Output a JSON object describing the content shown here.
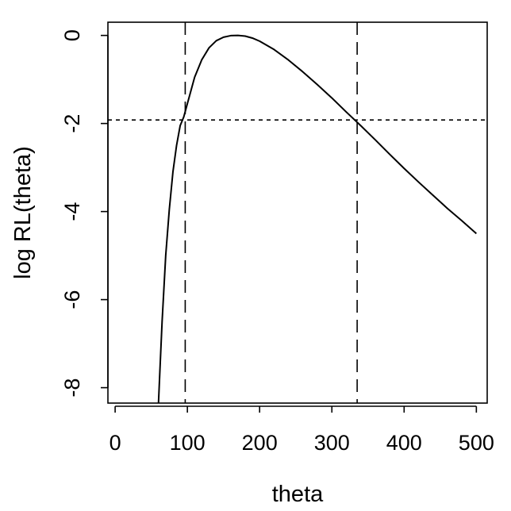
{
  "chart_data": {
    "type": "line",
    "title": "",
    "xlabel": "theta",
    "ylabel": "log RL(theta)",
    "xlim": [
      -10,
      515
    ],
    "ylim": [
      -8.35,
      0.3
    ],
    "x_ticks": [
      0,
      100,
      200,
      300,
      400,
      500
    ],
    "x_tick_labels": [
      "0",
      "100",
      "200",
      "300",
      "400",
      "500"
    ],
    "y_ticks": [
      0,
      -2,
      -4,
      -6,
      -8
    ],
    "y_tick_labels": [
      "0",
      "-2",
      "-4",
      "-6",
      "-8"
    ],
    "grid": false,
    "series": [
      {
        "style": "solid",
        "x": [
          60,
          62,
          65,
          70,
          75,
          80,
          85,
          90,
          95,
          100,
          110,
          120,
          130,
          140,
          150,
          160,
          170,
          180,
          190,
          200,
          220,
          240,
          260,
          280,
          300,
          320,
          340,
          360,
          380,
          400,
          420,
          440,
          460,
          480,
          500
        ],
        "y": [
          -8.35,
          -7.6,
          -6.5,
          -5.0,
          -3.95,
          -3.1,
          -2.5,
          -2.05,
          -1.85,
          -1.55,
          -0.95,
          -0.55,
          -0.28,
          -0.12,
          -0.04,
          -0.005,
          0.0,
          -0.015,
          -0.06,
          -0.13,
          -0.32,
          -0.56,
          -0.83,
          -1.12,
          -1.42,
          -1.74,
          -2.05,
          -2.37,
          -2.7,
          -3.02,
          -3.33,
          -3.63,
          -3.93,
          -4.21,
          -4.5
        ]
      }
    ],
    "vertical_lines": [
      {
        "x": 97,
        "style": "dashed"
      },
      {
        "x": 335,
        "style": "dashed"
      }
    ],
    "horizontal_lines": [
      {
        "y": -1.92,
        "style": "dotted"
      }
    ]
  }
}
